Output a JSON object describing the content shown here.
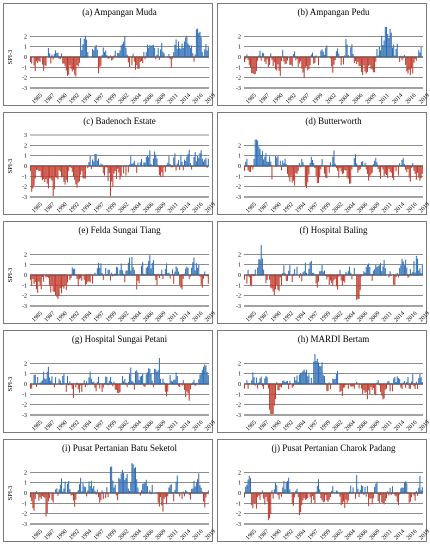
{
  "colors": {
    "positive": "#2e6db5",
    "negative": "#c0392b",
    "grid": "#000000",
    "axis": "#000000",
    "zero_band": "#f2b8c6"
  },
  "chart_data": [
    {
      "type": "bar",
      "title": "(a) Ampangan Muda",
      "ylabel": "SPI-3",
      "ylim": [
        -3,
        3
      ],
      "yticks": [
        "-3",
        "-2",
        "-1",
        "0",
        "1",
        "2"
      ],
      "xticks": [
        "1985",
        "1987",
        "1990",
        "1992",
        "1994",
        "1997",
        "1999",
        "2002",
        "2004",
        "2006",
        "2009",
        "2011",
        "2014",
        "2016",
        "2019"
      ],
      "seed": 11
    },
    {
      "type": "bar",
      "title": "(b) Ampangan Pedu",
      "ylabel": "",
      "ylim": [
        -3,
        3
      ],
      "yticks": [
        "-3",
        "-2",
        "-1",
        "0",
        "1",
        "2"
      ],
      "xticks": [
        "1985",
        "1987",
        "1990",
        "1992",
        "1997",
        "1999",
        "2002",
        "2004",
        "2006",
        "2009",
        "2011",
        "2014",
        "2016",
        "2019"
      ],
      "seed": 23
    },
    {
      "type": "bar",
      "title": "(c) Badenoch Estate",
      "ylabel": "SPI-3",
      "ylim": [
        -3,
        3
      ],
      "yticks": [
        "-3",
        "-2",
        "-1",
        "0",
        "1",
        "2",
        "3"
      ],
      "xticks": [
        "1985",
        "1987",
        "1990",
        "1992",
        "1994",
        "1997",
        "1999",
        "2002",
        "2004",
        "2006",
        "2009",
        "2011",
        "2014",
        "2016",
        "2019"
      ],
      "seed": 37
    },
    {
      "type": "bar",
      "title": "(d) Butterworth",
      "ylabel": "",
      "ylim": [
        -3,
        3
      ],
      "yticks": [
        "-3",
        "-2",
        "-1",
        "0",
        "1",
        "2"
      ],
      "xticks": [
        "1985",
        "1987",
        "1990",
        "1992",
        "1994",
        "1997",
        "1999",
        "2002",
        "2004",
        "2006",
        "2009",
        "2011",
        "2014",
        "2016",
        "2019"
      ],
      "seed": 41
    },
    {
      "type": "bar",
      "title": "(e) Felda Sungai Tiang",
      "ylabel": "SPI-3",
      "ylim": [
        -3,
        3
      ],
      "yticks": [
        "-3",
        "-2",
        "-1",
        "0",
        "1",
        "2"
      ],
      "xticks": [
        "1985",
        "1987",
        "1990",
        "1992",
        "1994",
        "1997",
        "1999",
        "2002",
        "2004",
        "2006",
        "2009",
        "2011",
        "2014",
        "2016",
        "2019"
      ],
      "seed": 53
    },
    {
      "type": "bar",
      "title": "(f) Hospital Baling",
      "ylabel": "",
      "ylim": [
        -3,
        3
      ],
      "yticks": [
        "-3",
        "-2",
        "-1",
        "0",
        "1",
        "2"
      ],
      "xticks": [
        "1985",
        "1987",
        "1990",
        "1992",
        "1994",
        "1997",
        "1999",
        "2002",
        "2004",
        "2006",
        "2009",
        "2011",
        "2014",
        "2016",
        "2019"
      ],
      "seed": 67
    },
    {
      "type": "bar",
      "title": "(g) Hospital Sungai Petani",
      "ylabel": "SPI-3",
      "ylim": [
        -3,
        3
      ],
      "yticks": [
        "-3",
        "-2",
        "-1",
        "0",
        "1",
        "2"
      ],
      "xticks": [
        "1985",
        "1987",
        "1990",
        "1992",
        "1994",
        "1997",
        "1999",
        "2002",
        "2004",
        "2006",
        "2009",
        "2011",
        "2014",
        "2016",
        "2019"
      ],
      "seed": 71
    },
    {
      "type": "bar",
      "title": "(h) MARDI Bertam",
      "ylabel": "",
      "ylim": [
        -3,
        3
      ],
      "yticks": [
        "-3",
        "-2",
        "-1",
        "0",
        "1",
        "2"
      ],
      "xticks": [
        "1985",
        "1987",
        "1990",
        "1992",
        "1994",
        "1997",
        "1999",
        "2002",
        "2004",
        "2006",
        "2009",
        "2011",
        "2014",
        "2016",
        "2019"
      ],
      "seed": 83
    },
    {
      "type": "bar",
      "title": "(i) Pusat Pertanian Batu Seketol",
      "ylabel": "SPI-3",
      "ylim": [
        -3,
        3
      ],
      "yticks": [
        "-3",
        "-2",
        "-1",
        "0",
        "1",
        "2"
      ],
      "xticks": [
        "1985",
        "1987",
        "1990",
        "1992",
        "1994",
        "1997",
        "1999",
        "2002",
        "2004",
        "2006",
        "2009",
        "2011",
        "2014",
        "2016",
        "2019"
      ],
      "seed": 97
    },
    {
      "type": "bar",
      "title": "(j) Pusat Pertanian Charok Padang",
      "ylabel": "",
      "ylim": [
        -3,
        3
      ],
      "yticks": [
        "-3",
        "-2",
        "-1",
        "0",
        "1",
        "2"
      ],
      "xticks": [
        "1985",
        "1987",
        "1990",
        "1992",
        "1994",
        "1997",
        "1999",
        "2002",
        "2004",
        "2006",
        "2009",
        "2011",
        "2014",
        "2016",
        "2019"
      ],
      "seed": 101
    }
  ]
}
